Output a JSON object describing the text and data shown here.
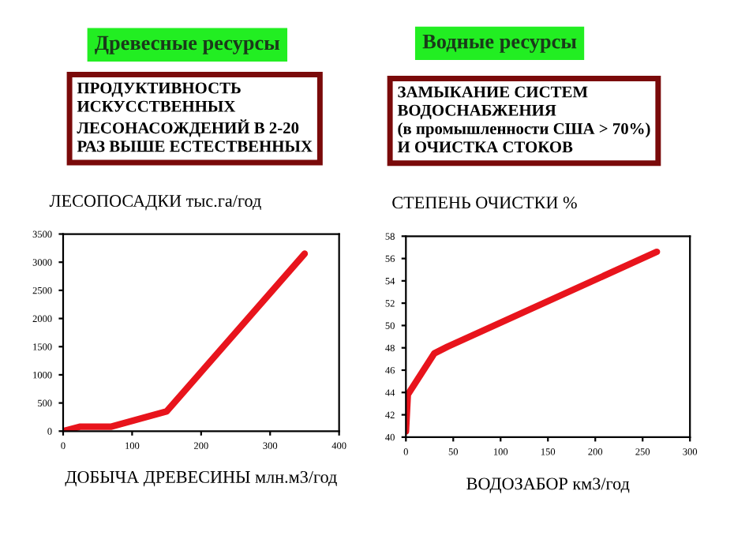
{
  "chart_data": [
    {
      "type": "line",
      "title": "Древесные ресурсы",
      "subtitle": "ПРОДУКТИВНОСТЬ\nИСКУССТВЕННЫХ\nЛЕСОНАСОЖДЕНИЙ В 2-20\nРАЗ ВЫШЕ ЕСТЕСТВЕННЫХ",
      "ylabel": "ЛЕСОПОСАДКИ тыс.га/год",
      "xlabel": "ДОБЫЧА ДРЕВЕСИНЫ млн.м3/год",
      "x": [
        0,
        25,
        70,
        150,
        350
      ],
      "series": [
        {
          "color": "#e8141c",
          "values": [
            0,
            80,
            80,
            350,
            3150
          ]
        }
      ],
      "xlim": [
        0,
        400
      ],
      "xticks": [
        0,
        100,
        200,
        300,
        400
      ],
      "ylim": [
        0,
        3500
      ],
      "yticks": [
        0,
        500,
        1000,
        1500,
        2000,
        2500,
        3000,
        3500
      ],
      "grid": false,
      "marker": "none",
      "line_style": "solid"
    },
    {
      "type": "line",
      "title": "Водные ресурсы",
      "subtitle": "ЗАМЫКАНИЕ СИСТЕМ\nВОДОСНАБЖЕНИЯ\n(в промышленности США > 70%)\nИ ОЧИСТКА СТОКОВ",
      "ylabel": "СТЕПЕНЬ ОЧИСТКИ %",
      "xlabel": "ВОДОЗАБОР км3/год",
      "x": [
        0,
        2,
        30,
        44,
        265
      ],
      "series": [
        {
          "color": "#e8141c",
          "values": [
            40.5,
            43.8,
            47.5,
            48.1,
            56.6
          ]
        }
      ],
      "xlim": [
        0,
        300
      ],
      "xticks": [
        0,
        50,
        100,
        150,
        200,
        250,
        300
      ],
      "ylim": [
        40,
        58
      ],
      "yticks": [
        40,
        42,
        44,
        46,
        48,
        50,
        52,
        54,
        56,
        58
      ],
      "grid": false,
      "marker": "none",
      "line_style": "solid"
    }
  ]
}
